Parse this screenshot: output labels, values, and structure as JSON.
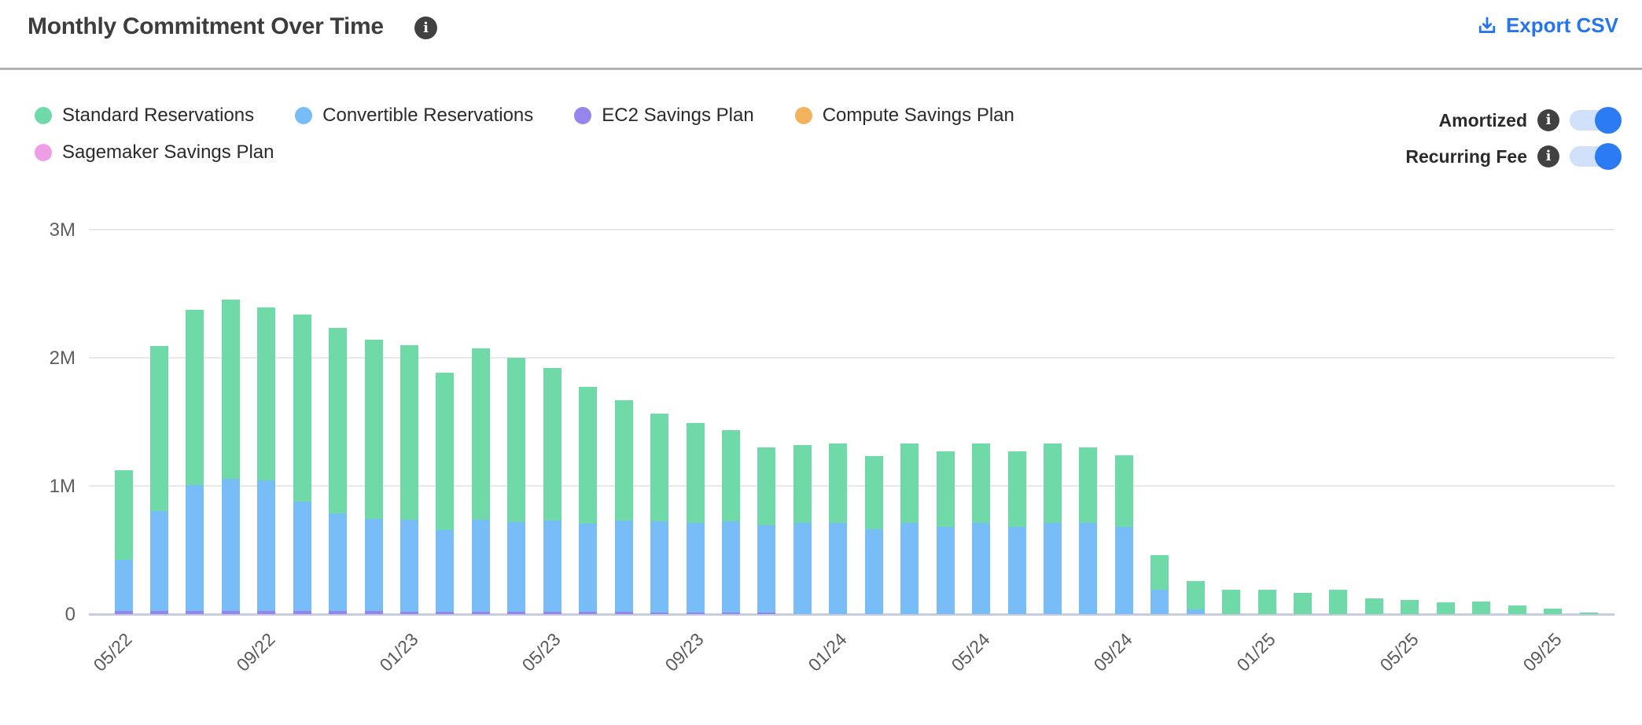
{
  "header": {
    "title": "Monthly Commitment Over Time",
    "export": {
      "label": "Export CSV"
    }
  },
  "legend": {
    "items": [
      {
        "label": "Standard Reservations",
        "color": "#70d9a8"
      },
      {
        "label": "Convertible Reservations",
        "color": "#78bdf8"
      },
      {
        "label": "EC2 Savings Plan",
        "color": "#9585ec"
      },
      {
        "label": "Compute Savings Plan",
        "color": "#f3b25e"
      },
      {
        "label": "Sagemaker Savings Plan",
        "color": "#ef9de7"
      }
    ]
  },
  "toggles": [
    {
      "label": "Amortized",
      "state": "on"
    },
    {
      "label": "Recurring Fee",
      "state": "on"
    }
  ],
  "colors": {
    "accent_blue": "#2575f0",
    "toggle_track": "#cfe0f8",
    "toggle_knob": "#2b7cf2",
    "gridline": "#e8e8e8",
    "axis_line": "#c7cde0"
  },
  "chart_data": {
    "type": "bar",
    "stacked": true,
    "title": "Monthly Commitment Over Time",
    "unit": "millions (M)",
    "ylim": [
      0,
      3
    ],
    "grid": true,
    "legend_position": "top-left",
    "yticks": [
      {
        "label": "0",
        "value": 0
      },
      {
        "label": "1M",
        "value": 1
      },
      {
        "label": "2M",
        "value": 2
      },
      {
        "label": "3M",
        "value": 3
      }
    ],
    "x_tick_every": 4,
    "x": [
      "05/22",
      "06/22",
      "07/22",
      "08/22",
      "09/22",
      "10/22",
      "11/22",
      "12/22",
      "01/23",
      "02/23",
      "03/23",
      "04/23",
      "05/23",
      "06/23",
      "07/23",
      "08/23",
      "09/23",
      "10/23",
      "11/23",
      "12/23",
      "01/24",
      "02/24",
      "03/24",
      "04/24",
      "05/24",
      "06/24",
      "07/24",
      "08/24",
      "09/24",
      "10/24",
      "11/24",
      "12/24",
      "01/25",
      "02/25",
      "03/25",
      "04/25",
      "05/25",
      "06/25",
      "07/25",
      "08/25",
      "09/25",
      "10/25"
    ],
    "stack_order_bottom_to_top": [
      "EC2 Savings Plan",
      "Convertible Reservations",
      "Standard Reservations",
      "Compute Savings Plan",
      "Sagemaker Savings Plan"
    ],
    "series": [
      {
        "name": "Standard Reservations",
        "color": "#70d9a8",
        "values": [
          0.7,
          1.29,
          1.37,
          1.4,
          1.35,
          1.46,
          1.45,
          1.4,
          1.36,
          1.23,
          1.34,
          1.28,
          1.19,
          1.07,
          0.94,
          0.84,
          0.78,
          0.71,
          0.61,
          0.61,
          0.62,
          0.57,
          0.62,
          0.59,
          0.62,
          0.59,
          0.62,
          0.59,
          0.56,
          0.27,
          0.22,
          0.19,
          0.19,
          0.165,
          0.19,
          0.12,
          0.11,
          0.095,
          0.1,
          0.07,
          0.045,
          0.015
        ]
      },
      {
        "name": "Convertible Reservations",
        "color": "#78bdf8",
        "values": [
          0.4,
          0.78,
          0.98,
          1.03,
          1.02,
          0.85,
          0.76,
          0.72,
          0.72,
          0.64,
          0.72,
          0.7,
          0.71,
          0.69,
          0.71,
          0.71,
          0.7,
          0.71,
          0.68,
          0.71,
          0.71,
          0.66,
          0.71,
          0.68,
          0.71,
          0.68,
          0.71,
          0.71,
          0.68,
          0.19,
          0.035,
          0,
          0,
          0,
          0,
          0,
          0,
          0,
          0,
          0,
          0,
          0
        ]
      },
      {
        "name": "EC2 Savings Plan",
        "color": "#9585ec",
        "values": [
          0.025,
          0.025,
          0.025,
          0.025,
          0.025,
          0.025,
          0.025,
          0.025,
          0.02,
          0.02,
          0.02,
          0.02,
          0.02,
          0.02,
          0.02,
          0.015,
          0.015,
          0.015,
          0.01,
          0,
          0,
          0,
          0,
          0,
          0,
          0,
          0,
          0,
          0,
          0,
          0,
          0,
          0,
          0,
          0,
          0,
          0,
          0,
          0,
          0,
          0,
          0
        ]
      },
      {
        "name": "Compute Savings Plan",
        "color": "#f3b25e",
        "values": [
          0,
          0,
          0,
          0,
          0,
          0,
          0,
          0,
          0,
          0,
          0,
          0,
          0,
          0,
          0,
          0,
          0,
          0,
          0,
          0,
          0,
          0,
          0,
          0,
          0,
          0,
          0,
          0,
          0,
          0,
          0,
          0,
          0,
          0,
          0,
          0,
          0,
          0,
          0,
          0,
          0,
          0
        ]
      },
      {
        "name": "Sagemaker Savings Plan",
        "color": "#ef9de7",
        "values": [
          0,
          0,
          0,
          0,
          0,
          0,
          0,
          0,
          0,
          0,
          0,
          0,
          0,
          0,
          0,
          0,
          0,
          0,
          0,
          0,
          0,
          0,
          0,
          0,
          0,
          0,
          0,
          0,
          0,
          0,
          0,
          0,
          0,
          0,
          0,
          0,
          0,
          0,
          0,
          0,
          0,
          0
        ]
      }
    ]
  }
}
